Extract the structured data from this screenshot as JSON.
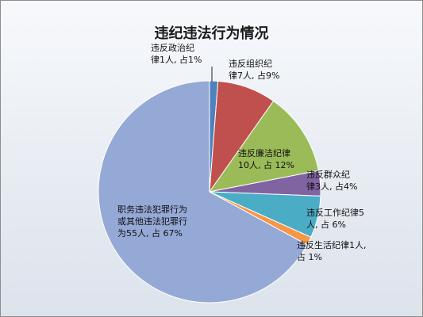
{
  "chart_data": {
    "type": "pie",
    "title": "违纪违法行为情况",
    "slices": [
      {
        "name": "违反政治纪律",
        "count": 1,
        "percent": 1,
        "color": "#4f81bd",
        "label_lines": [
          "违反政治纪",
          "律1人, 占1%"
        ]
      },
      {
        "name": "违反组织纪律",
        "count": 7,
        "percent": 9,
        "color": "#c0504d",
        "label_lines": [
          "违反组织纪",
          "律7人, 占9%"
        ]
      },
      {
        "name": "违反廉洁纪律",
        "count": 10,
        "percent": 12,
        "color": "#9bbb59",
        "label_lines": [
          "违反廉洁纪律",
          "10人, 占 12%"
        ]
      },
      {
        "name": "违反群众纪律",
        "count": 3,
        "percent": 4,
        "color": "#8064a2",
        "label_lines": [
          "违反群众纪",
          "律3人, 占4%"
        ]
      },
      {
        "name": "违反工作纪律",
        "count": 5,
        "percent": 6,
        "color": "#4bacc6",
        "label_lines": [
          "违反工作纪律5",
          "人, 占 6%"
        ]
      },
      {
        "name": "违反生活纪律",
        "count": 1,
        "percent": 1,
        "color": "#f79646",
        "label_lines": [
          "违反生活纪律1人,",
          "占 1%"
        ]
      },
      {
        "name": "职务违法犯罪行为或其他违法犯罪行为",
        "count": 55,
        "percent": 67,
        "color": "#95a9d6",
        "label_lines": [
          "职务违法犯罪行为",
          "或其他违法犯罪行",
          "为55人, 占 67%"
        ]
      }
    ]
  }
}
